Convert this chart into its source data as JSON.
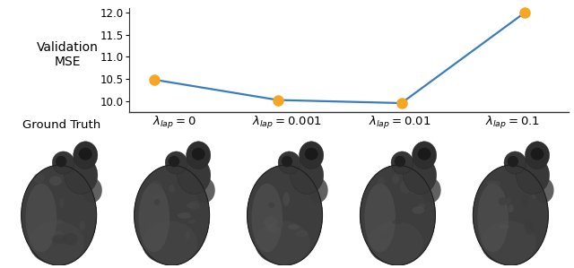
{
  "x_labels": [
    "$\\lambda_{lap} = 0$",
    "$\\lambda_{lap} = 0.001$",
    "$\\lambda_{lap} = 0.01$",
    "$\\lambda_{lap} = 0.1$"
  ],
  "x_positions": [
    0,
    1,
    2,
    3
  ],
  "y_values": [
    10.48,
    10.02,
    9.95,
    12.0
  ],
  "line_color": "#3a7dbf",
  "marker_color": "#f5a623",
  "marker_size": 8,
  "ylim": [
    9.75,
    12.1
  ],
  "yticks": [
    10.0,
    10.5,
    11.0,
    11.5,
    12.0
  ],
  "ylabel": "Validation\nMSE",
  "ground_truth_label": "Ground Truth",
  "bg_color": "#ffffff",
  "line_width": 1.6,
  "ylabel_fontsize": 10,
  "tick_fontsize": 8.5,
  "label_fontsize": 9.5
}
